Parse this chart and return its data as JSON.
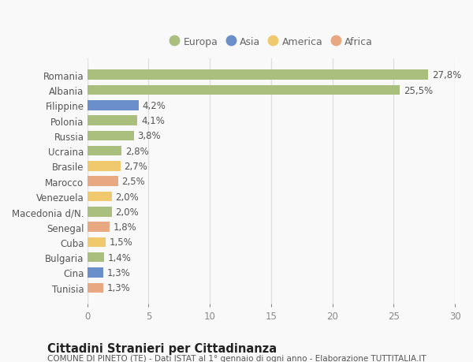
{
  "categories": [
    "Tunisia",
    "Cina",
    "Bulgaria",
    "Cuba",
    "Senegal",
    "Macedonia d/N.",
    "Venezuela",
    "Marocco",
    "Brasile",
    "Ucraina",
    "Russia",
    "Polonia",
    "Filippine",
    "Albania",
    "Romania"
  ],
  "values": [
    1.3,
    1.3,
    1.4,
    1.5,
    1.8,
    2.0,
    2.0,
    2.5,
    2.7,
    2.8,
    3.8,
    4.1,
    4.2,
    25.5,
    27.8
  ],
  "labels": [
    "1,3%",
    "1,3%",
    "1,4%",
    "1,5%",
    "1,8%",
    "2,0%",
    "2,0%",
    "2,5%",
    "2,7%",
    "2,8%",
    "3,8%",
    "4,1%",
    "4,2%",
    "25,5%",
    "27,8%"
  ],
  "colors": [
    "#e8a882",
    "#6b8fca",
    "#aabf7e",
    "#f0c96e",
    "#e8a882",
    "#aabf7e",
    "#f0c96e",
    "#e8a882",
    "#f0c96e",
    "#aabf7e",
    "#aabf7e",
    "#aabf7e",
    "#6b8fca",
    "#aabf7e",
    "#aabf7e"
  ],
  "legend_labels": [
    "Europa",
    "Asia",
    "America",
    "Africa"
  ],
  "legend_colors": [
    "#aabf7e",
    "#6b8fca",
    "#f0c96e",
    "#e8a882"
  ],
  "xlim": [
    0,
    30
  ],
  "xticks": [
    0,
    5,
    10,
    15,
    20,
    25,
    30
  ],
  "title": "Cittadini Stranieri per Cittadinanza",
  "subtitle": "COMUNE DI PINETO (TE) - Dati ISTAT al 1° gennaio di ogni anno - Elaborazione TUTTITALIA.IT",
  "background_color": "#f9f9f9",
  "grid_color": "#e0e0e0",
  "bar_height": 0.65,
  "label_fontsize": 8.5,
  "ytick_fontsize": 8.5,
  "xtick_fontsize": 8.5,
  "title_fontsize": 10.5,
  "subtitle_fontsize": 7.5,
  "legend_fontsize": 9
}
